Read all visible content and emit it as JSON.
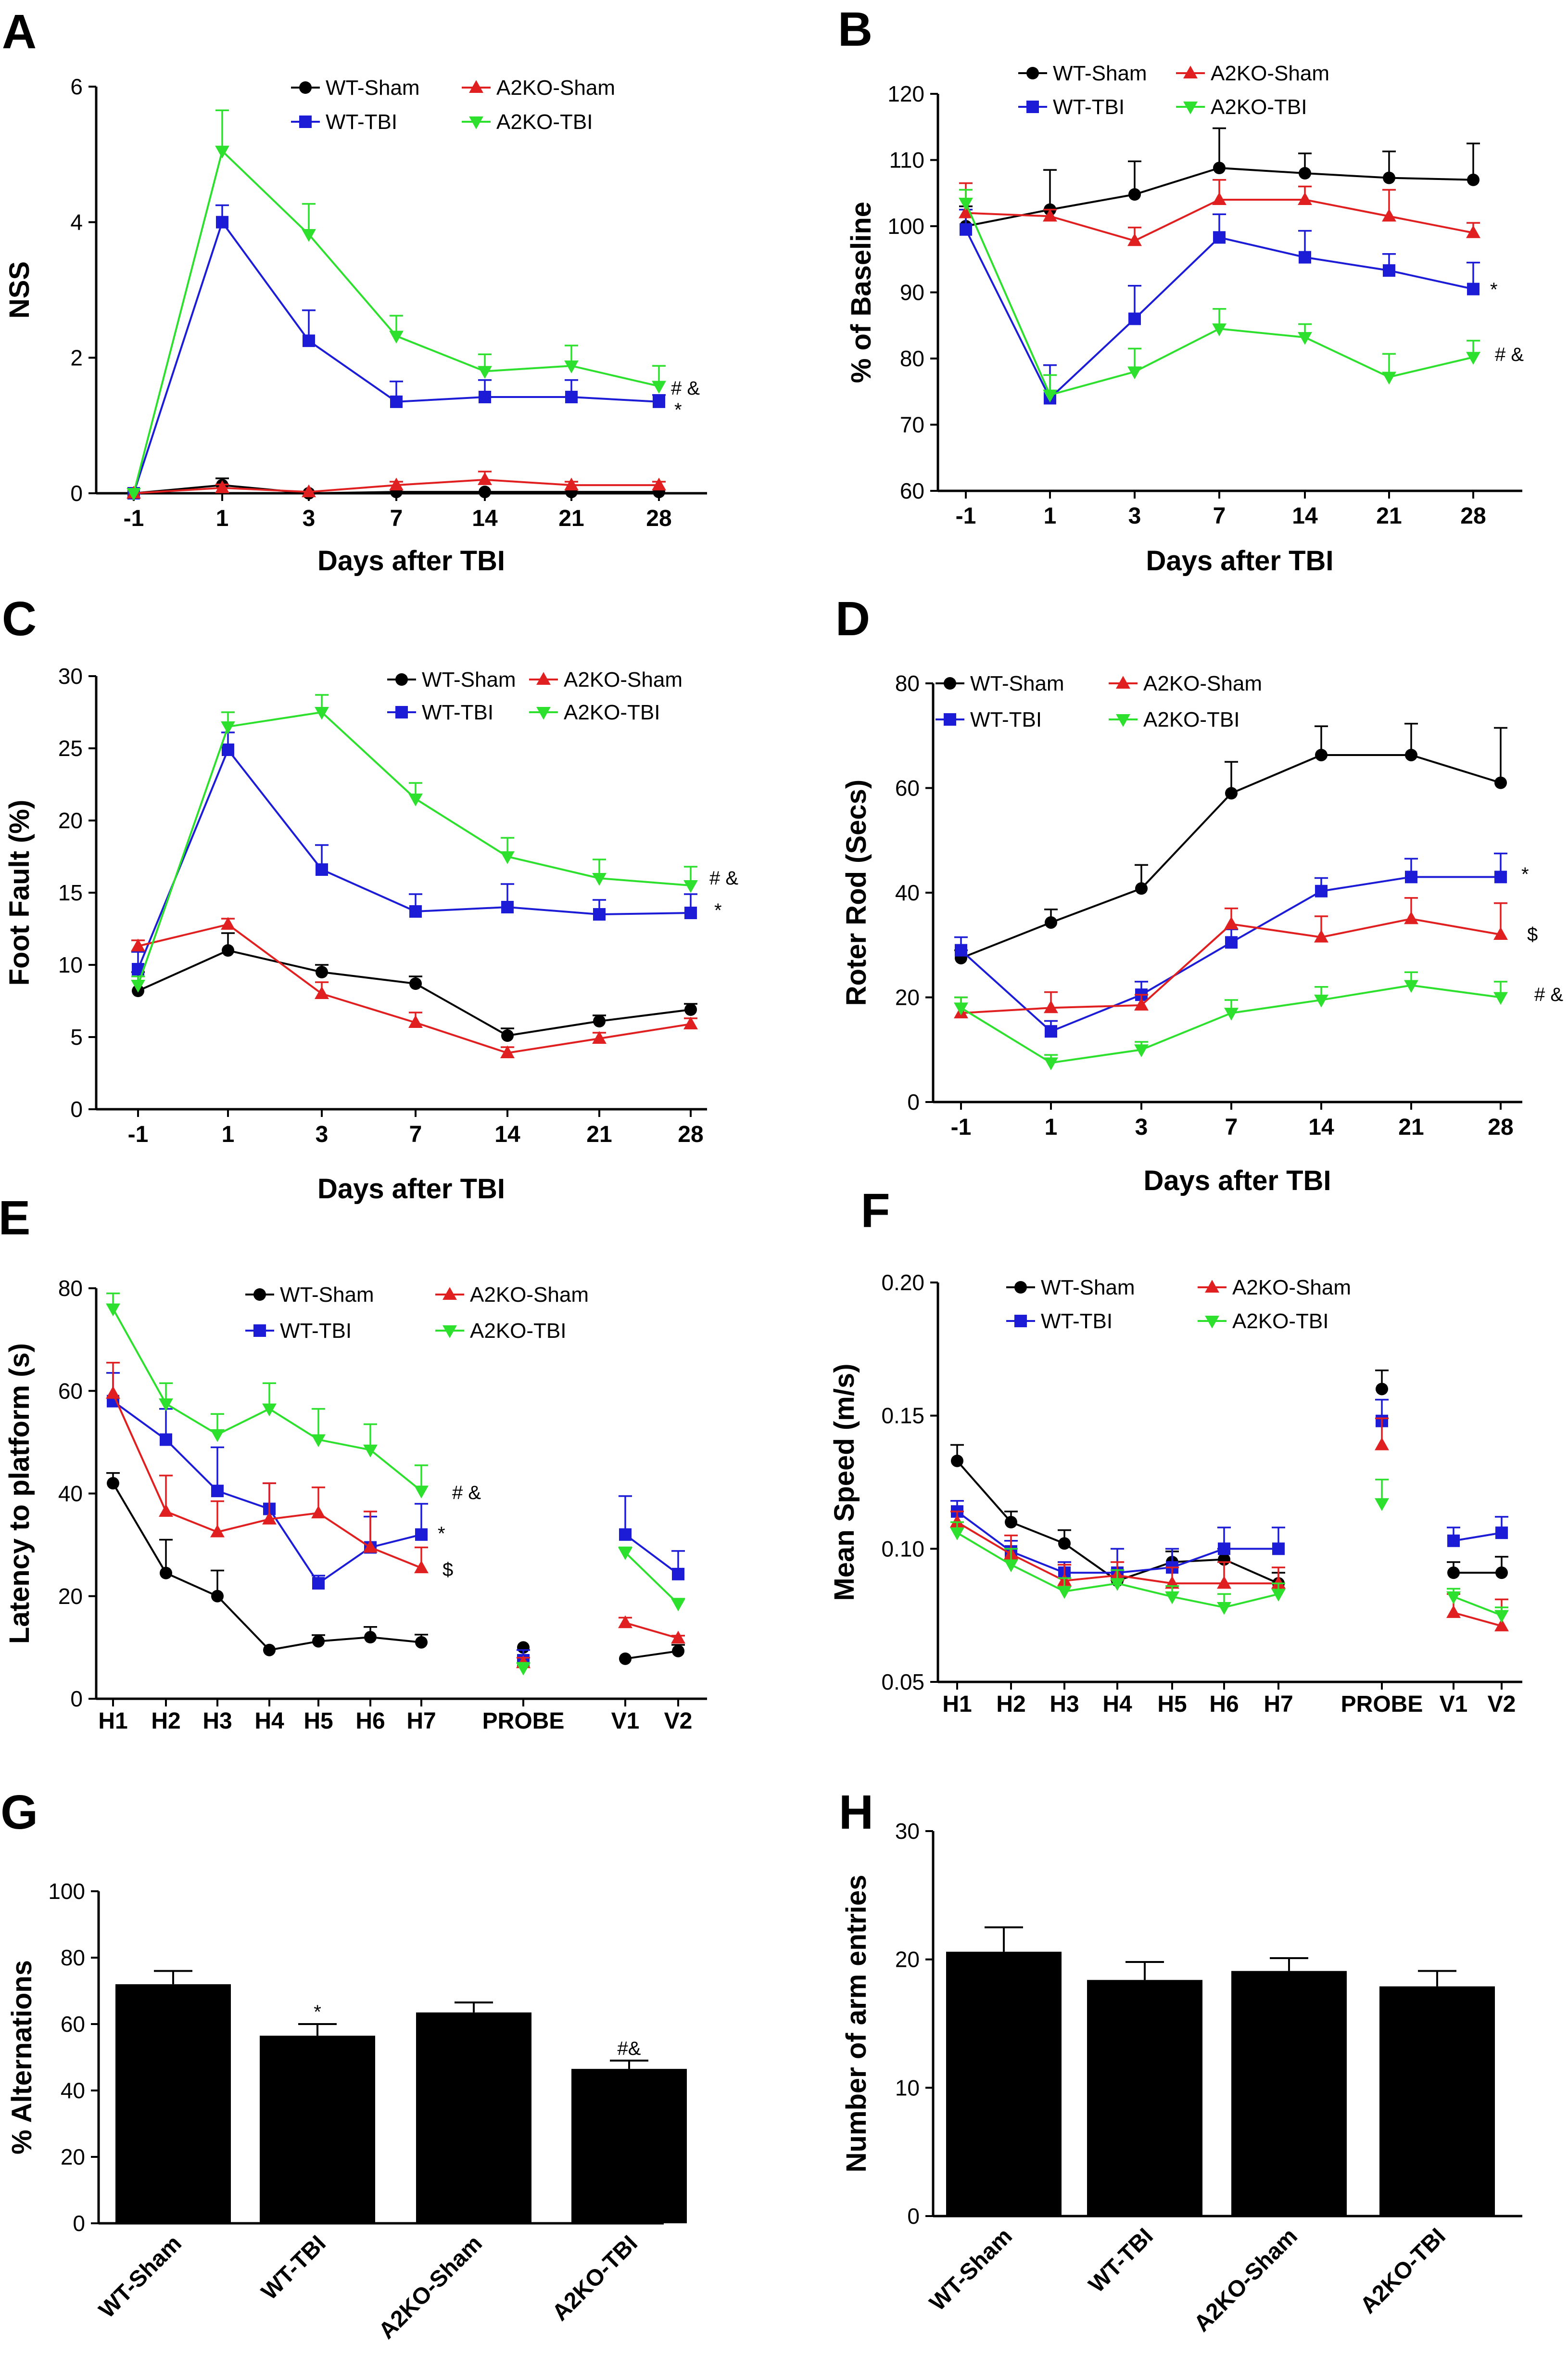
{
  "chart_data": [
    {
      "panel": "A",
      "type": "line",
      "ylabel": "NSS",
      "xlabel": "Days after TBI",
      "categories": [
        "-1",
        "1",
        "3",
        "7",
        "14",
        "21",
        "28"
      ],
      "ylim": [
        0,
        6
      ],
      "yticks": [
        0,
        2,
        4,
        6
      ],
      "series": [
        {
          "name": "WT-Sham",
          "color": "#000000",
          "marker": "circle",
          "values": [
            0,
            0.12,
            0,
            0.02,
            0.02,
            0.02,
            0.02
          ],
          "err": [
            0,
            0.1,
            0,
            0,
            0,
            0,
            0
          ]
        },
        {
          "name": "WT-TBI",
          "color": "#1c1cd6",
          "marker": "square",
          "values": [
            0,
            4.0,
            2.25,
            1.35,
            1.42,
            1.42,
            1.35
          ],
          "err": [
            0,
            0.25,
            0.45,
            0.3,
            0.25,
            0.25,
            0.1
          ]
        },
        {
          "name": "A2KO-Sham",
          "color": "#e02020",
          "marker": "triangle-up",
          "values": [
            0,
            0.08,
            0.02,
            0.12,
            0.2,
            0.12,
            0.12
          ],
          "err": [
            0,
            0.05,
            0,
            0.05,
            0.12,
            0.05,
            0.05
          ]
        },
        {
          "name": "A2KO-TBI",
          "color": "#2ee02e",
          "marker": "triangle-down",
          "values": [
            0,
            5.05,
            3.82,
            2.32,
            1.8,
            1.88,
            1.58
          ],
          "err": [
            0,
            0.6,
            0.45,
            0.3,
            0.25,
            0.3,
            0.3
          ]
        }
      ],
      "annotations": [
        "# &",
        "*"
      ]
    },
    {
      "panel": "B",
      "type": "line",
      "ylabel": "% of Baseline",
      "xlabel": "Days after TBI",
      "categories": [
        "-1",
        "1",
        "3",
        "7",
        "14",
        "21",
        "28"
      ],
      "ylim": [
        60,
        120
      ],
      "yticks": [
        60,
        70,
        80,
        90,
        100,
        110,
        120
      ],
      "series": [
        {
          "name": "WT-Sham",
          "color": "#000000",
          "marker": "circle",
          "values": [
            100,
            102.5,
            104.8,
            108.8,
            108,
            107.3,
            107
          ],
          "err": [
            3,
            6,
            5,
            6,
            3,
            4,
            5.5
          ]
        },
        {
          "name": "WT-TBI",
          "color": "#1c1cd6",
          "marker": "square",
          "values": [
            99.5,
            74,
            86,
            98.3,
            95.3,
            93.3,
            90.5
          ],
          "err": [
            3,
            5,
            5,
            3.5,
            4,
            2.5,
            4
          ]
        },
        {
          "name": "A2KO-Sham",
          "color": "#e02020",
          "marker": "triangle-up",
          "values": [
            102,
            101.5,
            97.8,
            104,
            104,
            101.5,
            99
          ],
          "err": [
            4.5,
            1,
            2,
            3,
            2,
            4,
            1.5
          ]
        },
        {
          "name": "A2KO-TBI",
          "color": "#2ee02e",
          "marker": "triangle-down",
          "values": [
            103.5,
            74.5,
            78,
            84.5,
            83.2,
            77.2,
            80.2
          ],
          "err": [
            2,
            3,
            3.5,
            3,
            2,
            3.5,
            2.5
          ]
        }
      ],
      "annotations": [
        "*",
        "# &"
      ]
    },
    {
      "panel": "C",
      "type": "line",
      "ylabel": "Foot Fault (%)",
      "xlabel": "Days after TBI",
      "categories": [
        "-1",
        "1",
        "3",
        "7",
        "14",
        "21",
        "28"
      ],
      "ylim": [
        0,
        30
      ],
      "yticks": [
        0,
        5,
        10,
        15,
        20,
        25,
        30
      ],
      "series": [
        {
          "name": "WT-Sham",
          "color": "#000000",
          "marker": "circle",
          "values": [
            8.2,
            11,
            9.5,
            8.7,
            5.1,
            6.1,
            6.9
          ],
          "err": [
            1.3,
            1.2,
            0.5,
            0.5,
            0.5,
            0.4,
            0.4
          ]
        },
        {
          "name": "WT-TBI",
          "color": "#1c1cd6",
          "marker": "square",
          "values": [
            9.7,
            24.9,
            16.6,
            13.7,
            14,
            13.5,
            13.6
          ],
          "err": [
            1.2,
            1.2,
            1.7,
            1.2,
            1.6,
            1,
            1.3
          ]
        },
        {
          "name": "A2KO-Sham",
          "color": "#e02020",
          "marker": "triangle-up",
          "values": [
            11.3,
            12.8,
            8,
            6,
            3.9,
            4.9,
            5.9
          ],
          "err": [
            0.4,
            0.4,
            0.8,
            0.7,
            0.4,
            0.4,
            0.4
          ]
        },
        {
          "name": "A2KO-TBI",
          "color": "#2ee02e",
          "marker": "triangle-down",
          "values": [
            8.6,
            26.5,
            27.5,
            21.5,
            17.5,
            16,
            15.5
          ],
          "err": [
            0.6,
            1,
            1.2,
            1.1,
            1.3,
            1.3,
            1.3
          ]
        }
      ],
      "annotations": [
        "# &",
        "*"
      ]
    },
    {
      "panel": "D",
      "type": "line",
      "ylabel": "Roter Rod (Secs)",
      "xlabel": "Days after TBI",
      "categories": [
        "-1",
        "1",
        "3",
        "7",
        "14",
        "21",
        "28"
      ],
      "ylim": [
        0,
        80
      ],
      "yticks": [
        0,
        20,
        40,
        60,
        80
      ],
      "series": [
        {
          "name": "WT-Sham",
          "color": "#000000",
          "marker": "circle",
          "values": [
            27.5,
            34.3,
            40.8,
            59,
            66.3,
            66.3,
            61
          ],
          "err": [
            1.5,
            2.5,
            4.5,
            6,
            5.5,
            6,
            10.5
          ]
        },
        {
          "name": "WT-TBI",
          "color": "#1c1cd6",
          "marker": "square",
          "values": [
            29,
            13.5,
            20.5,
            30.5,
            40.3,
            43,
            43
          ],
          "err": [
            2.5,
            2,
            2.5,
            2.5,
            2.5,
            3.5,
            4.5
          ]
        },
        {
          "name": "A2KO-Sham",
          "color": "#e02020",
          "marker": "triangle-up",
          "values": [
            17,
            18,
            18.5,
            34,
            31.5,
            35,
            32
          ],
          "err": [
            3,
            3,
            2,
            3,
            4,
            4,
            6
          ]
        },
        {
          "name": "A2KO-TBI",
          "color": "#2ee02e",
          "marker": "triangle-down",
          "values": [
            18,
            7.5,
            10,
            17,
            19.5,
            22.3,
            20
          ],
          "err": [
            2,
            1.5,
            1.5,
            2.5,
            2.5,
            2.5,
            3
          ]
        }
      ],
      "annotations": [
        "*",
        "$",
        "# &"
      ]
    },
    {
      "panel": "E",
      "type": "line",
      "ylabel": "Latency to platform (s)",
      "xlabel": "",
      "categories": [
        "H1",
        "H2",
        "H3",
        "H4",
        "H5",
        "H6",
        "H7",
        "PROBE",
        "V1",
        "V2"
      ],
      "ylim": [
        0,
        80
      ],
      "yticks": [
        0,
        20,
        40,
        60,
        80
      ],
      "series": [
        {
          "name": "WT-Sham",
          "color": "#000000",
          "marker": "circle",
          "values": [
            42,
            24.5,
            20,
            9.5,
            11.2,
            12,
            11,
            10,
            7.8,
            9.3
          ],
          "err": [
            2,
            6.5,
            5,
            0,
            1.2,
            2,
            1.5,
            0,
            0,
            1.2
          ]
        },
        {
          "name": "WT-TBI",
          "color": "#1c1cd6",
          "marker": "square",
          "values": [
            58,
            50.5,
            40.5,
            37,
            22.5,
            29.5,
            32,
            7.5,
            32,
            24.3
          ],
          "err": [
            5.5,
            6,
            8.5,
            5,
            1.5,
            6,
            6,
            2,
            7.5,
            4.5
          ]
        },
        {
          "name": "A2KO-Sham",
          "color": "#e02020",
          "marker": "triangle-up",
          "values": [
            59.5,
            36.5,
            32.5,
            35,
            36.2,
            29.5,
            25.5,
            7,
            14.8,
            11.8
          ],
          "err": [
            6,
            7,
            6,
            7,
            5,
            7,
            4,
            1,
            1,
            0.5
          ]
        },
        {
          "name": "A2KO-TBI",
          "color": "#2ee02e",
          "marker": "triangle-down",
          "values": [
            76,
            57.5,
            51.5,
            56.5,
            50.5,
            48.5,
            40.5,
            6,
            28.5,
            18.5
          ],
          "err": [
            3,
            4,
            4,
            5,
            6,
            5,
            5,
            1,
            1,
            1
          ]
        }
      ],
      "annotations": [
        "# &",
        "*",
        "$"
      ]
    },
    {
      "panel": "F",
      "type": "line",
      "ylabel": "Mean Speed (m/s)",
      "xlabel": "",
      "categories": [
        "H1",
        "H2",
        "H3",
        "H4",
        "H5",
        "H6",
        "H7",
        "PROBE",
        "V1",
        "V2"
      ],
      "ylim": [
        0.05,
        0.2
      ],
      "yticks": [
        "0.05",
        "0.10",
        "0.15",
        "0.20"
      ],
      "series": [
        {
          "name": "WT-Sham",
          "color": "#000000",
          "marker": "circle",
          "values": [
            0.133,
            0.11,
            0.102,
            0.088,
            0.095,
            0.096,
            0.087,
            0.16,
            0.091,
            0.091
          ],
          "err": [
            0.006,
            0.004,
            0.005,
            0.004,
            0.004,
            0.004,
            0.004,
            0.007,
            0.004,
            0.006
          ]
        },
        {
          "name": "WT-TBI",
          "color": "#1c1cd6",
          "marker": "square",
          "values": [
            0.114,
            0.099,
            0.091,
            0.091,
            0.093,
            0.1,
            0.1,
            0.148,
            0.103,
            0.106
          ],
          "err": [
            0.004,
            0.004,
            0.004,
            0.009,
            0.007,
            0.008,
            0.008,
            0.008,
            0.005,
            0.006
          ]
        },
        {
          "name": "A2KO-Sham",
          "color": "#e02020",
          "marker": "triangle-up",
          "values": [
            0.11,
            0.098,
            0.088,
            0.09,
            0.087,
            0.087,
            0.087,
            0.139,
            0.076,
            0.071
          ],
          "err": [
            0.004,
            0.007,
            0.006,
            0.005,
            0.006,
            0.008,
            0.006,
            0.01,
            0.007,
            0.01
          ]
        },
        {
          "name": "A2KO-TBI",
          "color": "#2ee02e",
          "marker": "triangle-down",
          "values": [
            0.106,
            0.094,
            0.084,
            0.087,
            0.082,
            0.078,
            0.083,
            0.117,
            0.082,
            0.075
          ],
          "err": [
            0.004,
            0.006,
            0.005,
            0.005,
            0.004,
            0.005,
            0.004,
            0.009,
            0.003,
            0.003
          ]
        }
      ],
      "annotations": []
    },
    {
      "panel": "G",
      "type": "bar",
      "ylabel": "% Alternations",
      "xlabel": "",
      "categories": [
        "WT-Sham",
        "WT-TBI",
        "A2KO-Sham",
        "A2KO-TBI"
      ],
      "values": [
        72,
        56.5,
        63.5,
        46.5
      ],
      "err": [
        4,
        3.5,
        3,
        2.5
      ],
      "ylim": [
        0,
        100
      ],
      "yticks": [
        0,
        20,
        40,
        60,
        80,
        100
      ],
      "bar_labels": [
        "",
        "*",
        "",
        "#&"
      ]
    },
    {
      "panel": "H",
      "type": "bar",
      "ylabel": "Number of arm entries",
      "xlabel": "",
      "categories": [
        "WT-Sham",
        "WT-TBI",
        "A2KO-Sham",
        "A2KO-TBI"
      ],
      "values": [
        20.6,
        18.4,
        19.1,
        17.9
      ],
      "err": [
        1.9,
        1.4,
        1.0,
        1.2
      ],
      "ylim": [
        0,
        30
      ],
      "yticks": [
        0,
        10,
        20,
        30
      ],
      "bar_labels": [
        "",
        "",
        "",
        ""
      ]
    }
  ]
}
